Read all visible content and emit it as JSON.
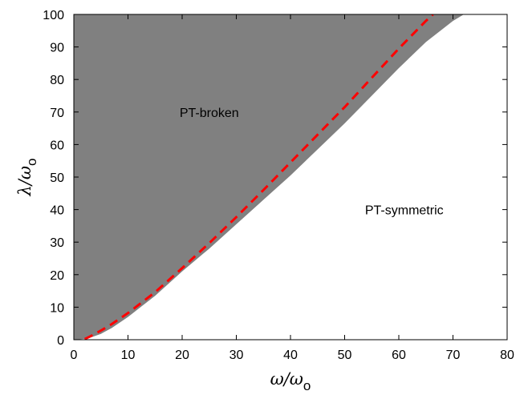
{
  "chart_data": {
    "type": "area",
    "xlabel": {
      "main": "ω/ω",
      "sub": "o"
    },
    "ylabel": {
      "main": "λ/ω",
      "sub": "o"
    },
    "xlim": [
      0,
      80
    ],
    "ylim": [
      0,
      100
    ],
    "xticks": [
      0,
      10,
      20,
      30,
      40,
      50,
      60,
      70,
      80
    ],
    "yticks": [
      0,
      10,
      20,
      30,
      40,
      50,
      60,
      70,
      80,
      90,
      100
    ],
    "grid": false,
    "regions": [
      {
        "label": "PT-broken",
        "fill": "#808080",
        "label_at": {
          "x": 25,
          "y": 70
        }
      },
      {
        "label": "PT-symmetric",
        "fill": "#ffffff",
        "label_at": {
          "x": 61,
          "y": 40
        }
      }
    ],
    "boundary": {
      "x": [
        0,
        1,
        2,
        3,
        5,
        7,
        10,
        15,
        20,
        25,
        30,
        35,
        40,
        45,
        50,
        55,
        60,
        65,
        70,
        72
      ],
      "y": [
        0,
        0.1,
        0.3,
        0.6,
        1.8,
        3.6,
        7,
        13.5,
        21,
        28,
        35.5,
        43,
        50.5,
        58.5,
        66.5,
        75,
        83.5,
        91.5,
        98,
        100
      ]
    },
    "series": [
      {
        "style": "dashed",
        "color": "#ff0000",
        "x": [
          2,
          3,
          5,
          7,
          10,
          15,
          20,
          25,
          30,
          35,
          40,
          45,
          50,
          55,
          60,
          65,
          66.3
        ],
        "y": [
          0.2,
          1.0,
          2.8,
          4.8,
          8.2,
          14.6,
          22,
          29.7,
          37.7,
          46,
          54.5,
          63,
          71.5,
          80.5,
          89.5,
          98,
          100
        ]
      }
    ]
  }
}
